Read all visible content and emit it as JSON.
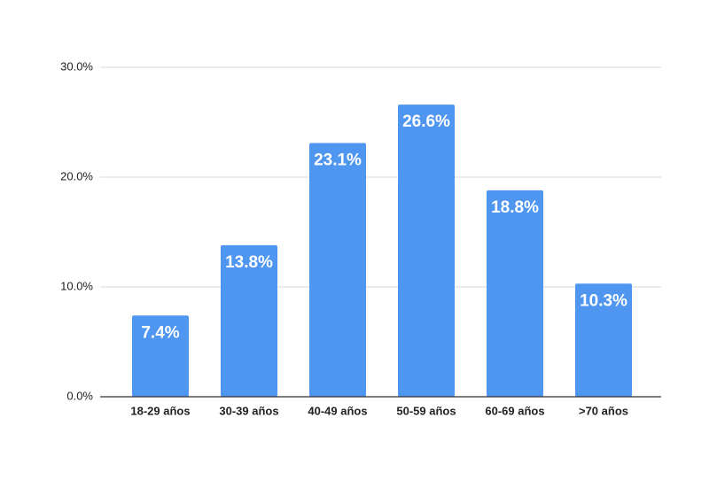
{
  "chart_data": {
    "type": "bar",
    "categories": [
      "18-29 años",
      "30-39 años",
      "40-49 años",
      "50-59 años",
      "60-69 años",
      ">70 años"
    ],
    "values": [
      7.4,
      13.8,
      23.1,
      26.6,
      18.8,
      10.3
    ],
    "value_labels": [
      "7.4%",
      "13.8%",
      "23.1%",
      "26.6%",
      "18.8%",
      "10.3%"
    ],
    "color": "#4f96f0",
    "ylim": [
      0,
      30
    ],
    "yticks": [
      {
        "value": 0,
        "label": "0.0%"
      },
      {
        "value": 10,
        "label": "10.0%"
      },
      {
        "value": 20,
        "label": "20.0%"
      },
      {
        "value": 30,
        "label": "30.0%"
      }
    ],
    "grid": true
  }
}
